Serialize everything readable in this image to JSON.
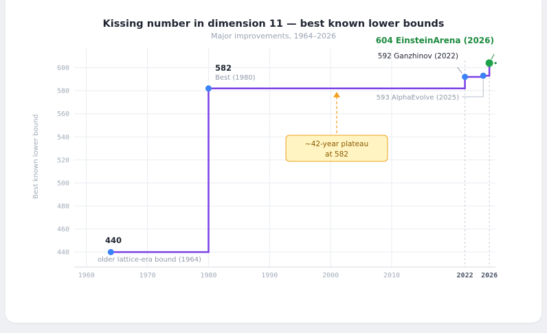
{
  "chart_data": {
    "type": "line",
    "title": "Kissing number in dimension 11 — best known lower bounds",
    "subtitle": "Major improvements, 1964–2026",
    "ylabel": "Best known lower bound",
    "xlabel": "",
    "xlim": [
      1958,
      2027
    ],
    "ylim": [
      427,
      617
    ],
    "x_ticks": [
      1960,
      1970,
      1980,
      1990,
      2000,
      2010
    ],
    "x_ticks_highlight": [
      2022,
      2026
    ],
    "y_ticks": [
      440,
      460,
      480,
      500,
      520,
      540,
      560,
      580,
      600
    ],
    "grid": true,
    "step_series": {
      "points": [
        {
          "x": 1964,
          "y": 440
        },
        {
          "x": 1980,
          "y": 582
        },
        {
          "x": 2022,
          "y": 592
        },
        {
          "x": 2025,
          "y": 593
        },
        {
          "x": 2026,
          "y": 604
        }
      ],
      "color": "#7b3fe4"
    },
    "markers": [
      {
        "x": 1964,
        "y": 440,
        "color": "#3b82f6",
        "value_label": "440",
        "sub_label": "older lattice-era bound (1964)"
      },
      {
        "x": 1980,
        "y": 582,
        "color": "#3b82f6",
        "value_label": "582",
        "sub_label": "Best (1980)"
      },
      {
        "x": 2022,
        "y": 592,
        "color": "#3b82f6",
        "label": "592 Ganzhinov (2022)"
      },
      {
        "x": 2025,
        "y": 593,
        "color": "#3b82f6",
        "label": "593 AlphaEvolve (2025)"
      },
      {
        "x": 2026,
        "y": 604,
        "color": "#1fa34a",
        "label": "604 EinsteinArena (2026)"
      }
    ],
    "plateau_annotation": {
      "x": 2001,
      "y_arrow_tip": 582,
      "line1": "~42-year plateau",
      "line2": "at 582",
      "color": "#f0a020",
      "box_fill": "#fff4c2"
    },
    "colors": {
      "axis_text": "#a3acba",
      "grid": "#e9ecf1",
      "highlight_tick_2026": "#1b8a3e"
    }
  }
}
